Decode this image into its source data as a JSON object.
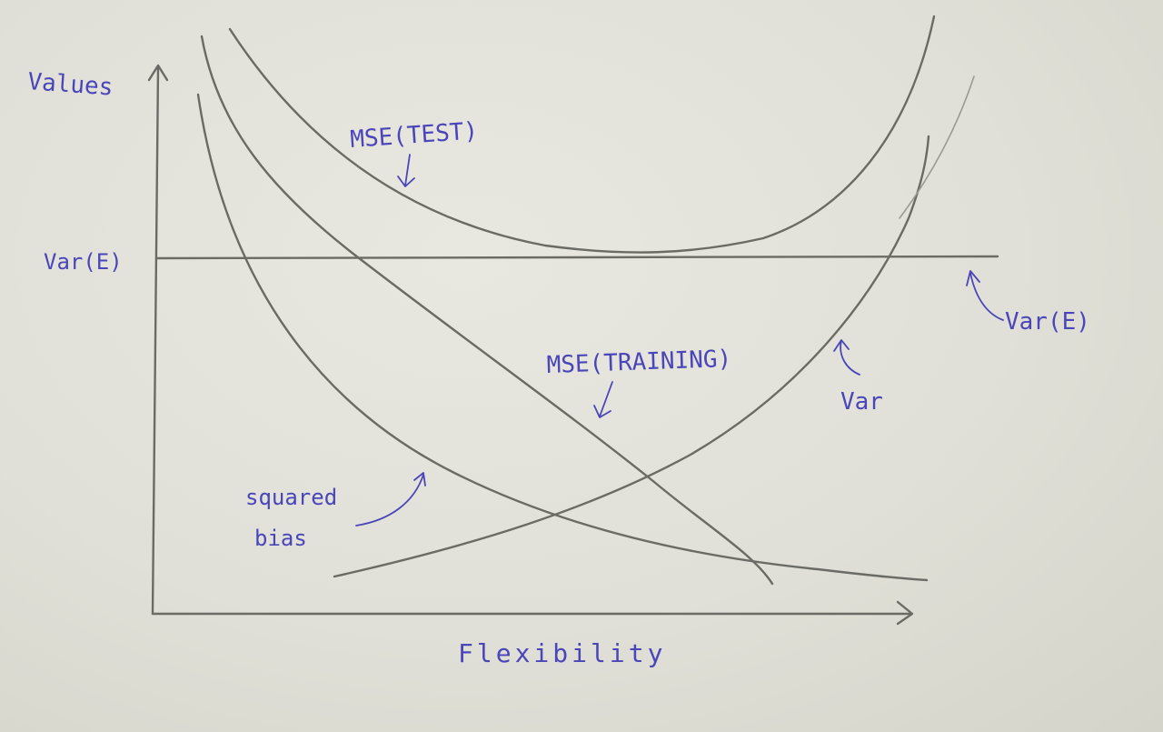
{
  "axes": {
    "y_label": "Values",
    "x_label": "Flexibility",
    "y_tick_label": "Var(E)"
  },
  "curves": {
    "mse_test": "MSE(TEST)",
    "mse_training": "MSE(TRAINING)",
    "squared_bias_line1": "squared",
    "squared_bias_line2": "bias",
    "variance": "Var",
    "noise": "Var(E)"
  },
  "colors": {
    "paper": "#e4e4dc",
    "pencil": "#6b6b66",
    "ink": "#4a45b8"
  }
}
